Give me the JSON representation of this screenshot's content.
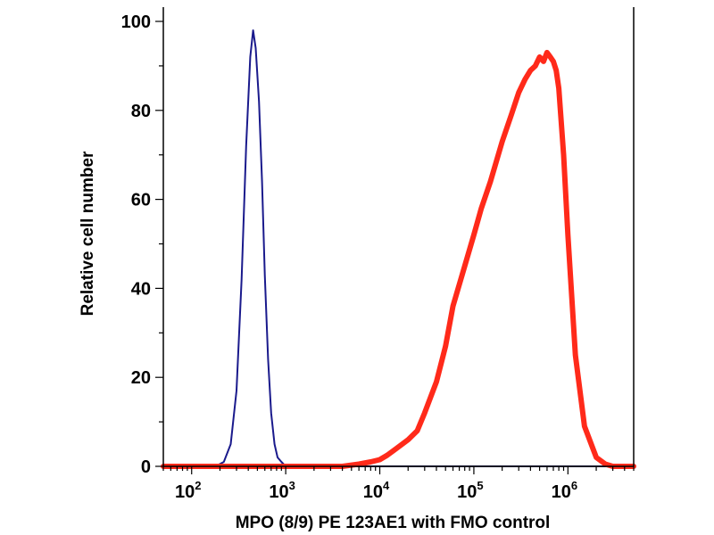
{
  "chart_data": {
    "type": "line",
    "title": "",
    "xlabel": "MPO (8/9) PE 123AE1 with FMO control",
    "ylabel": "Relative cell number",
    "xscale": "log",
    "xlim": [
      50,
      5000000
    ],
    "ylim": [
      0,
      100
    ],
    "grid": false,
    "legend": "none",
    "x_ticks": [
      {
        "value": 100,
        "base": "10",
        "exp": "2"
      },
      {
        "value": 1000,
        "base": "10",
        "exp": "3"
      },
      {
        "value": 10000,
        "base": "10",
        "exp": "4"
      },
      {
        "value": 100000,
        "base": "10",
        "exp": "5"
      },
      {
        "value": 1000000,
        "base": "10",
        "exp": "6"
      }
    ],
    "y_ticks": [
      "0",
      "20",
      "40",
      "60",
      "80",
      "100"
    ],
    "series": [
      {
        "color": "#1a1a8c",
        "x": [
          50,
          180,
          220,
          260,
          300,
          340,
          380,
          420,
          450,
          480,
          520,
          560,
          600,
          650,
          700,
          760,
          820,
          900,
          1000,
          1200,
          5000000
        ],
        "y": [
          0,
          0,
          1,
          5,
          17,
          42,
          72,
          92,
          98,
          94,
          82,
          64,
          43,
          24,
          12,
          5,
          2,
          1,
          0,
          0,
          0
        ]
      },
      {
        "color": "#ff2a1a",
        "x": [
          50,
          4000,
          6000,
          8000,
          10000,
          12000,
          15000,
          20000,
          25000,
          30000,
          40000,
          50000,
          60000,
          80000,
          100000,
          120000,
          150000,
          200000,
          250000,
          300000,
          350000,
          400000,
          450000,
          500000,
          550000,
          600000,
          650000,
          700000,
          750000,
          800000,
          900000,
          1000000,
          1200000,
          1500000,
          2000000,
          2500000,
          3000000,
          5000000
        ],
        "y": [
          0,
          0,
          0.5,
          1,
          1.5,
          2.5,
          4,
          6,
          8,
          12,
          19,
          27,
          36,
          45,
          52,
          58,
          64,
          73,
          79,
          84,
          87,
          89,
          90,
          92,
          91,
          93,
          92,
          91,
          89,
          85,
          70,
          52,
          25,
          9,
          2,
          0.5,
          0,
          0
        ]
      }
    ]
  }
}
